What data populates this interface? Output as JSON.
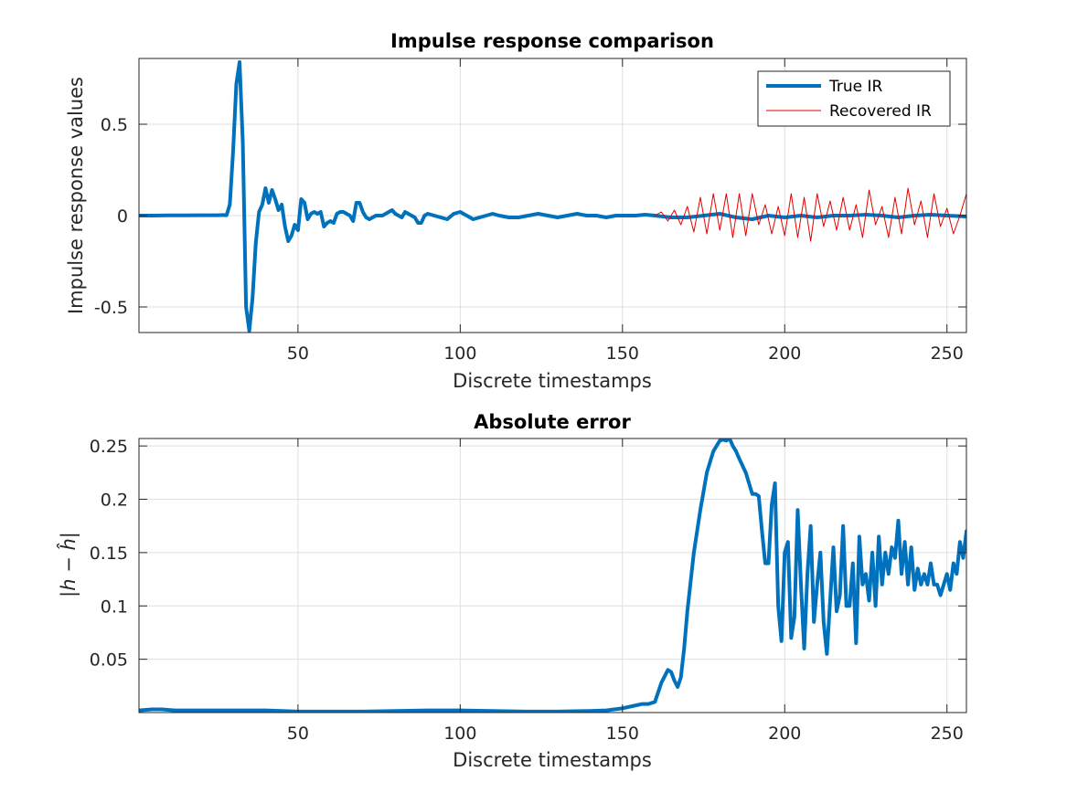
{
  "chart_data": [
    {
      "type": "line",
      "title": "Impulse response comparison",
      "xlabel": "Discrete timestamps",
      "ylabel": "Impulse response values",
      "xlim": [
        1,
        256
      ],
      "ylim": [
        -0.64,
        0.86
      ],
      "xticks": [
        50,
        100,
        150,
        200,
        250
      ],
      "yticks": [
        -0.5,
        0,
        0.5
      ],
      "ytick_labels": [
        "-0.5",
        "0",
        "0.5"
      ],
      "grid": true,
      "legend": "top-right",
      "series": [
        {
          "name": "True IR",
          "color": "#0072BD",
          "x": [
            1,
            5,
            10,
            15,
            20,
            25,
            27,
            28,
            29,
            30,
            31,
            32,
            33,
            34,
            35,
            36,
            37,
            38,
            39,
            40,
            41,
            42,
            43,
            44,
            45,
            46,
            47,
            48,
            49,
            50,
            51,
            52,
            53,
            54,
            55,
            56,
            57,
            58,
            59,
            60,
            61,
            62,
            63,
            64,
            65,
            66,
            67,
            68,
            69,
            70,
            71,
            72,
            73,
            74,
            75,
            76,
            77,
            78,
            79,
            80,
            81,
            82,
            83,
            84,
            85,
            86,
            87,
            88,
            89,
            90,
            92,
            94,
            96,
            98,
            100,
            102,
            104,
            106,
            108,
            110,
            112,
            115,
            118,
            121,
            124,
            127,
            130,
            133,
            136,
            139,
            142,
            145,
            148,
            151,
            154,
            157,
            160,
            165,
            170,
            175,
            180,
            185,
            190,
            195,
            200,
            205,
            210,
            215,
            220,
            225,
            230,
            235,
            240,
            245,
            250,
            256
          ],
          "y": [
            0,
            0,
            0.001,
            0.001,
            0.002,
            0.002,
            0.003,
            0.002,
            0.06,
            0.35,
            0.72,
            0.84,
            0.4,
            -0.5,
            -0.63,
            -0.45,
            -0.15,
            0.02,
            0.06,
            0.15,
            0.07,
            0.14,
            0.09,
            0.03,
            0.06,
            -0.06,
            -0.14,
            -0.11,
            -0.05,
            -0.08,
            0.09,
            0.07,
            -0.02,
            0.01,
            0.02,
            0.01,
            0.02,
            -0.06,
            -0.04,
            -0.03,
            -0.04,
            0.01,
            0.02,
            0.02,
            0.01,
            0.0,
            -0.03,
            0.07,
            0.07,
            0.02,
            -0.01,
            -0.02,
            -0.01,
            0.0,
            0.0,
            0.0,
            0.01,
            0.02,
            0.03,
            0.01,
            0.0,
            -0.01,
            0.02,
            0.01,
            0.0,
            -0.01,
            -0.04,
            -0.04,
            0.0,
            0.01,
            0.0,
            -0.01,
            -0.02,
            0.01,
            0.02,
            0.0,
            -0.02,
            -0.01,
            0.0,
            0.01,
            0.0,
            -0.01,
            -0.01,
            0.0,
            0.01,
            0.0,
            -0.01,
            0.0,
            0.01,
            0.0,
            0.0,
            -0.01,
            0.0,
            0.0,
            0.0,
            0.005,
            0.0,
            -0.01,
            -0.01,
            0.0,
            0.01,
            -0.01,
            -0.02,
            0.0,
            -0.01,
            0.0,
            -0.01,
            0.0,
            0.0,
            0.005,
            0.0,
            -0.01,
            0.0,
            0.005,
            0.0,
            -0.005
          ]
        },
        {
          "name": "Recovered IR",
          "color": "#E60000",
          "x": [
            160,
            162,
            164,
            166,
            168,
            170,
            172,
            174,
            176,
            178,
            180,
            182,
            184,
            186,
            188,
            190,
            192,
            194,
            196,
            198,
            200,
            202,
            204,
            206,
            208,
            210,
            212,
            214,
            216,
            218,
            220,
            222,
            224,
            226,
            228,
            230,
            232,
            234,
            236,
            238,
            240,
            242,
            244,
            246,
            248,
            250,
            252,
            254,
            256
          ],
          "y": [
            0.0,
            0.02,
            -0.03,
            0.03,
            -0.05,
            0.05,
            -0.09,
            0.1,
            -0.1,
            0.12,
            -0.08,
            0.12,
            -0.12,
            0.12,
            -0.11,
            0.12,
            -0.05,
            0.06,
            -0.1,
            0.05,
            -0.11,
            0.12,
            -0.12,
            0.1,
            -0.14,
            0.12,
            -0.06,
            0.08,
            -0.08,
            0.1,
            -0.08,
            0.06,
            -0.12,
            0.14,
            -0.05,
            0.05,
            -0.12,
            0.1,
            -0.1,
            0.15,
            -0.05,
            0.08,
            -0.12,
            0.12,
            -0.06,
            0.04,
            -0.1,
            0.0,
            0.12
          ]
        }
      ]
    },
    {
      "type": "line",
      "title": "Absolute error",
      "xlabel": "Discrete timestamps",
      "ylabel": "|h − ĥ|",
      "xlim": [
        1,
        256
      ],
      "ylim": [
        0,
        0.257
      ],
      "xticks": [
        50,
        100,
        150,
        200,
        250
      ],
      "yticks": [
        0.05,
        0.1,
        0.15,
        0.2,
        0.25
      ],
      "ytick_labels": [
        "0.05",
        "0.1",
        "0.15",
        "0.2",
        "0.25"
      ],
      "grid": true,
      "series": [
        {
          "name": "",
          "color": "#0072BD",
          "x": [
            1,
            5,
            8,
            12,
            20,
            30,
            40,
            50,
            60,
            70,
            80,
            90,
            100,
            110,
            120,
            130,
            140,
            145,
            150,
            153,
            156,
            158,
            160,
            162,
            164,
            165,
            166,
            167,
            168,
            169,
            170,
            172,
            174,
            176,
            178,
            180,
            181,
            182,
            183,
            184,
            185,
            186,
            188,
            190,
            191,
            192,
            193,
            194,
            195,
            196,
            197,
            198,
            199,
            200,
            201,
            202,
            203,
            204,
            205,
            206,
            207,
            208,
            209,
            210,
            211,
            212,
            213,
            214,
            215,
            216,
            217,
            218,
            219,
            220,
            221,
            222,
            223,
            224,
            225,
            226,
            227,
            228,
            229,
            230,
            231,
            232,
            233,
            234,
            235,
            236,
            237,
            238,
            239,
            240,
            241,
            242,
            243,
            244,
            245,
            246,
            247,
            248,
            249,
            250,
            251,
            252,
            253,
            254,
            255,
            256
          ],
          "y": [
            0.002,
            0.003,
            0.003,
            0.002,
            0.002,
            0.002,
            0.002,
            0.001,
            0.001,
            0.001,
            0.0015,
            0.002,
            0.002,
            0.0015,
            0.001,
            0.001,
            0.0015,
            0.002,
            0.004,
            0.006,
            0.008,
            0.008,
            0.01,
            0.028,
            0.04,
            0.038,
            0.03,
            0.024,
            0.033,
            0.06,
            0.095,
            0.15,
            0.19,
            0.225,
            0.245,
            0.255,
            0.256,
            0.255,
            0.257,
            0.25,
            0.245,
            0.238,
            0.225,
            0.205,
            0.205,
            0.203,
            0.17,
            0.14,
            0.14,
            0.195,
            0.215,
            0.1,
            0.067,
            0.15,
            0.16,
            0.07,
            0.09,
            0.19,
            0.12,
            0.06,
            0.13,
            0.175,
            0.085,
            0.12,
            0.15,
            0.085,
            0.055,
            0.105,
            0.155,
            0.095,
            0.11,
            0.175,
            0.1,
            0.1,
            0.14,
            0.065,
            0.165,
            0.12,
            0.13,
            0.105,
            0.15,
            0.1,
            0.165,
            0.12,
            0.15,
            0.13,
            0.155,
            0.145,
            0.18,
            0.13,
            0.16,
            0.12,
            0.155,
            0.115,
            0.135,
            0.12,
            0.13,
            0.12,
            0.14,
            0.12,
            0.12,
            0.11,
            0.12,
            0.13,
            0.115,
            0.14,
            0.13,
            0.16,
            0.145,
            0.17
          ]
        }
      ]
    }
  ]
}
